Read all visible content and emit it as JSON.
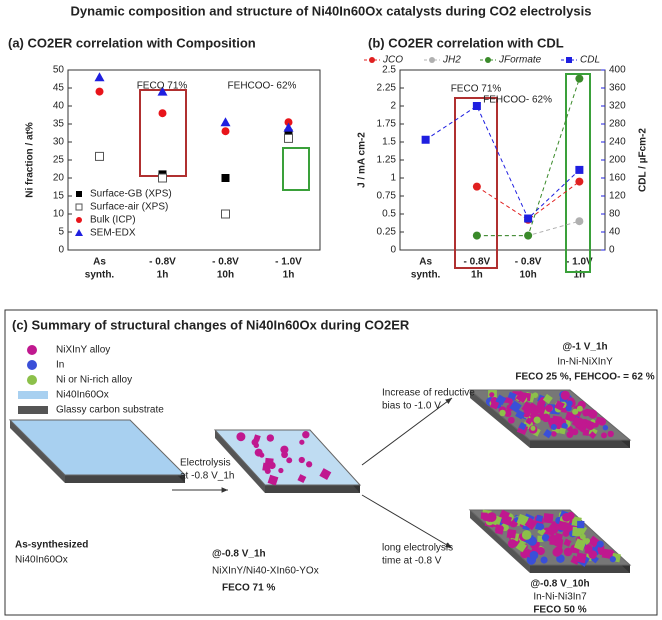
{
  "title": "Dynamic composition and structure of Ni40In60Ox catalysts during CO2 electrolysis",
  "chart_data": [
    {
      "type": "scatter",
      "title": "(a) CO2ER correlation with Composition",
      "categories": [
        [
          "As",
          "synth."
        ],
        [
          "- 0.8V",
          "1h"
        ],
        [
          "- 0.8V",
          "10h"
        ],
        [
          "- 1.0V",
          "1h"
        ]
      ],
      "ylabel": "Ni fraction / at%",
      "ylim": [
        0,
        50
      ],
      "yticks": [
        0,
        5,
        10,
        15,
        20,
        25,
        30,
        35,
        40,
        45,
        50
      ],
      "series": [
        {
          "name": "Surface-GB (XPS)",
          "color": "#000000",
          "marker": "square",
          "values": [
            null,
            21,
            20,
            32.5
          ]
        },
        {
          "name": "Surface-air (XPS)",
          "color": "#555555",
          "marker": "square-open",
          "values": [
            26,
            20,
            10,
            31
          ]
        },
        {
          "name": "Bulk (ICP)",
          "color": "#e8141a",
          "marker": "circle",
          "values": [
            44,
            38,
            33,
            35.5
          ]
        },
        {
          "name": "SEM-EDX",
          "color": "#1f1fe0",
          "marker": "triangle",
          "values": [
            48,
            44,
            35.5,
            34
          ]
        }
      ],
      "annotations": [
        {
          "text": "FECO 71%",
          "color": "#b03030"
        },
        {
          "text": "FEHCOO- 62%",
          "color": "#3aa03a"
        }
      ]
    },
    {
      "type": "line",
      "title": "(b) CO2ER correlation with CDL",
      "categories": [
        [
          "As",
          "synth."
        ],
        [
          "- 0.8V",
          "1h"
        ],
        [
          "- 0.8V",
          "10h"
        ],
        [
          "- 1.0V",
          "1h"
        ]
      ],
      "ylabel": "J / mA cm-2",
      "y2label": "CDL / µFcm-2",
      "ylim": [
        0,
        2.5
      ],
      "yticks": [
        0,
        0.25,
        0.5,
        0.75,
        1,
        1.25,
        1.5,
        1.75,
        2,
        2.25,
        2.5
      ],
      "y2lim": [
        0,
        400
      ],
      "y2ticks": [
        0,
        40,
        80,
        120,
        160,
        200,
        240,
        280,
        320,
        360,
        400
      ],
      "series": [
        {
          "name": "JCO",
          "color": "#e02020",
          "marker": "circle",
          "values": [
            null,
            0.88,
            0.42,
            0.95
          ]
        },
        {
          "name": "JH2",
          "color": "#b0b0b0",
          "marker": "circle",
          "values": [
            null,
            0.2,
            0.2,
            0.4
          ]
        },
        {
          "name": "JFormate",
          "color": "#3a8a2a",
          "marker": "circle",
          "values": [
            null,
            0.2,
            0.2,
            2.38
          ]
        },
        {
          "name": "CDL",
          "color": "#1f1fe0",
          "marker": "square",
          "axis": "y2",
          "values": [
            245,
            320,
            70,
            178
          ]
        }
      ],
      "annotations": [
        {
          "text": "FECO 71%",
          "color": "#b03030"
        },
        {
          "text": "FEHCOO- 62%",
          "color": "#3aa03a"
        }
      ]
    }
  ],
  "diagram": {
    "title": "(c) Summary of structural changes of Ni40In60Ox during CO2ER",
    "legend": [
      "NiXInY alloy",
      "In",
      "Ni or Ni-rich alloy",
      "Ni40In60Ox",
      "Glassy carbon substrate"
    ],
    "start": {
      "label": "As-synthesized",
      "material": "Ni40In60Ox"
    },
    "electrolysis": [
      "Electrolysis",
      "at -0.8 V_1h"
    ],
    "step1": {
      "label": "@-0.8 V_1h",
      "phase": "NiXInY/Ni40-XIn60-YOx",
      "fe": "FECO 71 %"
    },
    "arrow_up": [
      "Increase of reductive",
      "bias to -1.0 V"
    ],
    "arrow_down": [
      "long electrolysis",
      "time at -0.8 V"
    ],
    "step2": {
      "label": "@-1 V_1h",
      "phase": "In-Ni-NiXInY",
      "fe": "FECO 25 %, FEHCOO- = 62 %"
    },
    "step3": {
      "label": "@-0.8 V_10h",
      "phase": "In-Ni-Ni3In7",
      "fe": "FECO 50 %"
    }
  }
}
